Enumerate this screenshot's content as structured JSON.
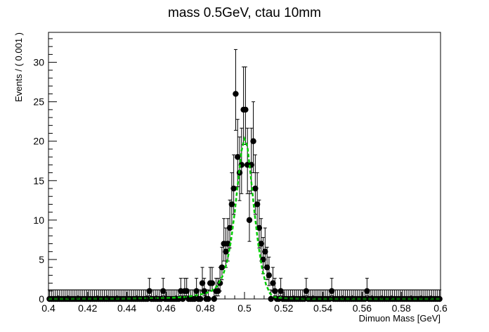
{
  "chart_data": {
    "type": "scatter",
    "title": "mass 0.5GeV, ctau 10mm",
    "xlabel": "Dimuon Mass [GeV]",
    "ylabel": "Events / ( 0.001 )",
    "xlim": [
      0.4,
      0.6
    ],
    "ylim": [
      0,
      33.8
    ],
    "x_ticks": [
      0.4,
      0.42,
      0.44,
      0.46,
      0.48,
      0.5,
      0.52,
      0.54,
      0.56,
      0.58,
      0.6
    ],
    "x_tick_labels": [
      "0.4",
      "0.42",
      "0.44",
      "0.46",
      "0.48",
      "0.5",
      "0.52",
      "0.54",
      "0.56",
      "0.58",
      "0.6"
    ],
    "y_ticks": [
      0,
      5,
      10,
      15,
      20,
      25,
      30
    ],
    "y_tick_labels": [
      "0",
      "5",
      "10",
      "15",
      "20",
      "25",
      "30"
    ],
    "bin_width": 0.001,
    "marker_color": "#000000",
    "curve_color": "#00cc00",
    "series": [
      {
        "type": "points",
        "counts": [
          [
            0.4515,
            1
          ],
          [
            0.4585,
            1
          ],
          [
            0.4675,
            1
          ],
          [
            0.4695,
            1
          ],
          [
            0.4705,
            1
          ],
          [
            0.4755,
            1
          ],
          [
            0.4785,
            2
          ],
          [
            0.4795,
            1
          ],
          [
            0.4825,
            2
          ],
          [
            0.4835,
            2
          ],
          [
            0.4855,
            1
          ],
          [
            0.4865,
            1
          ],
          [
            0.4875,
            2
          ],
          [
            0.4885,
            4
          ],
          [
            0.4895,
            7
          ],
          [
            0.4905,
            6
          ],
          [
            0.4915,
            7
          ],
          [
            0.4925,
            9
          ],
          [
            0.4935,
            12
          ],
          [
            0.4945,
            14
          ],
          [
            0.4955,
            26
          ],
          [
            0.4965,
            18
          ],
          [
            0.4975,
            16
          ],
          [
            0.4985,
            17
          ],
          [
            0.4995,
            24
          ],
          [
            0.5005,
            24
          ],
          [
            0.5015,
            17
          ],
          [
            0.5025,
            10
          ],
          [
            0.5035,
            17
          ],
          [
            0.5045,
            20
          ],
          [
            0.5055,
            14
          ],
          [
            0.5065,
            12
          ],
          [
            0.5075,
            9
          ],
          [
            0.5085,
            7
          ],
          [
            0.5095,
            5
          ],
          [
            0.5105,
            6
          ],
          [
            0.5115,
            4
          ],
          [
            0.5125,
            3
          ],
          [
            0.5145,
            2
          ],
          [
            0.5155,
            1
          ],
          [
            0.5185,
            1
          ],
          [
            0.5315,
            1
          ],
          [
            0.5445,
            1
          ],
          [
            0.5625,
            1
          ]
        ]
      },
      {
        "type": "curve",
        "peak_value": 20.3,
        "peak_x": 0.5,
        "points": [
          [
            0.4,
            0.0
          ],
          [
            0.44,
            0.02
          ],
          [
            0.46,
            0.1
          ],
          [
            0.47,
            0.25
          ],
          [
            0.475,
            0.45
          ],
          [
            0.48,
            0.7
          ],
          [
            0.483,
            1.0
          ],
          [
            0.486,
            1.6
          ],
          [
            0.489,
            3.0
          ],
          [
            0.491,
            4.6
          ],
          [
            0.493,
            7.2
          ],
          [
            0.495,
            11.0
          ],
          [
            0.497,
            15.5
          ],
          [
            0.4985,
            18.8
          ],
          [
            0.5,
            20.3
          ],
          [
            0.5015,
            19.3
          ],
          [
            0.503,
            16.0
          ],
          [
            0.505,
            11.2
          ],
          [
            0.507,
            7.0
          ],
          [
            0.509,
            3.8
          ],
          [
            0.511,
            1.8
          ],
          [
            0.513,
            0.7
          ],
          [
            0.515,
            0.25
          ],
          [
            0.52,
            0.05
          ],
          [
            0.53,
            0.0
          ],
          [
            0.6,
            0.0
          ]
        ]
      }
    ]
  }
}
